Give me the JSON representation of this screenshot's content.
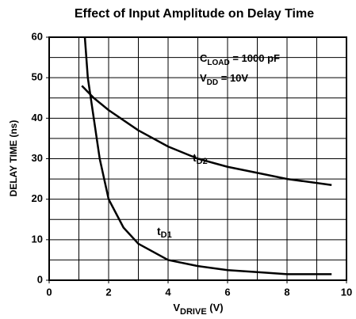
{
  "chart_data": {
    "type": "line",
    "title": "Effect of Input Amplitude on Delay Time",
    "x_label": {
      "main": "V",
      "sub": "DRIVE",
      "rest": " (V)"
    },
    "y_label": "DELAY TIME (ns)",
    "annotations": [
      {
        "main": "C",
        "sub": "LOAD",
        "rest": " = 1000 pF"
      },
      {
        "main": "V",
        "sub": "DD",
        "rest": " = 10V"
      }
    ],
    "series": [
      {
        "name": {
          "main": "t",
          "sub": "D1"
        },
        "color": "#000000",
        "x": [
          1.2,
          1.3,
          1.5,
          1.7,
          2,
          2.5,
          3,
          4,
          5,
          6,
          7,
          8,
          9.5
        ],
        "values": [
          60,
          50,
          40,
          30,
          20,
          13,
          9,
          5,
          3.5,
          2.5,
          2,
          1.5,
          1.5
        ]
      },
      {
        "name": {
          "main": "t",
          "sub": "D2"
        },
        "color": "#000000",
        "x": [
          1.1,
          1.5,
          2,
          3,
          4,
          5,
          6,
          7,
          8,
          9.5
        ],
        "values": [
          48,
          45,
          42,
          37,
          33,
          30,
          28,
          26.5,
          25,
          23.5
        ]
      }
    ],
    "xlim": [
      0,
      10
    ],
    "xticks": [
      0,
      2,
      4,
      6,
      8,
      10
    ],
    "ylim": [
      0,
      60
    ],
    "yticks": [
      0,
      10,
      20,
      30,
      40,
      50,
      60
    ],
    "xgrid": [
      1,
      2,
      3,
      4,
      5,
      6,
      7,
      8,
      9
    ],
    "ygrid": [
      5,
      10,
      15,
      20,
      25,
      30,
      35,
      40,
      45,
      50,
      55
    ],
    "grid": true
  }
}
